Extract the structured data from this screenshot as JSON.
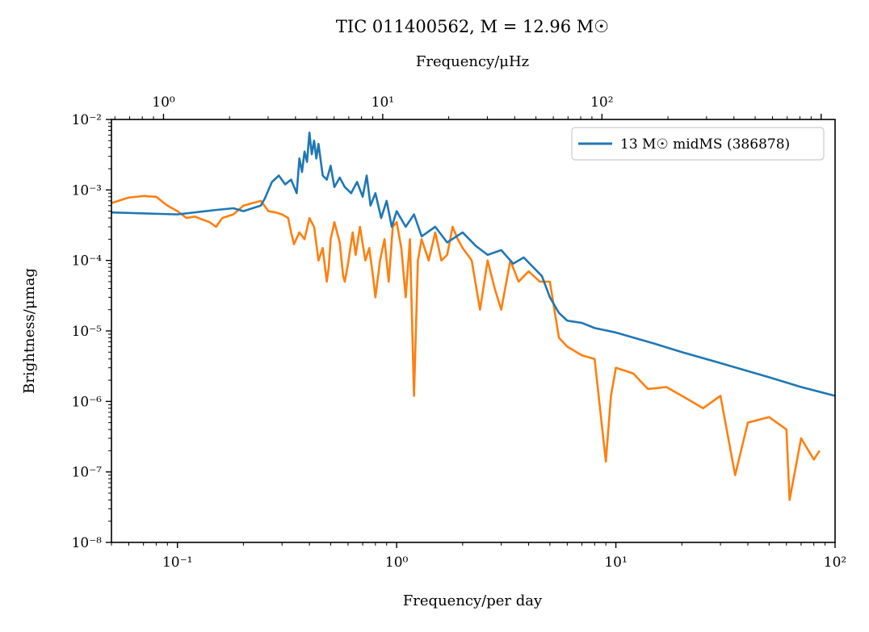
{
  "chart_data": {
    "type": "line",
    "title": "TIC 011400562, M = 12.96 M☉",
    "xlabel": "Frequency/per day",
    "ylabel": "Brightness/μmag",
    "x2label": "Frequency/μHz",
    "xscale": "log",
    "yscale": "log",
    "xlim": [
      0.05,
      100
    ],
    "ylim": [
      1e-08,
      0.01
    ],
    "x2lim": [
      0.5787,
      1157.4
    ],
    "x_ticks": [
      {
        "value": 0.1,
        "label": "10⁻¹"
      },
      {
        "value": 1,
        "label": "10⁰"
      },
      {
        "value": 10,
        "label": "10¹"
      },
      {
        "value": 100,
        "label": "10²"
      }
    ],
    "x2_ticks": [
      {
        "value": 1,
        "label": "10⁰"
      },
      {
        "value": 10,
        "label": "10¹"
      },
      {
        "value": 100,
        "label": "10²"
      }
    ],
    "y_ticks": [
      {
        "value": 0.01,
        "label": "10⁻²"
      },
      {
        "value": 0.001,
        "label": "10⁻³"
      },
      {
        "value": 0.0001,
        "label": "10⁻⁴"
      },
      {
        "value": 1e-05,
        "label": "10⁻⁵"
      },
      {
        "value": 1e-06,
        "label": "10⁻⁶"
      },
      {
        "value": 1e-07,
        "label": "10⁻⁷"
      },
      {
        "value": 1e-08,
        "label": "10⁻⁸"
      }
    ],
    "grid": false,
    "legend": "top-right",
    "series": [
      {
        "name": "13 M☉ midMS (386878)",
        "color": "#1f77b4",
        "x": [
          0.05,
          0.1,
          0.15,
          0.18,
          0.2,
          0.22,
          0.24,
          0.25,
          0.27,
          0.29,
          0.31,
          0.33,
          0.35,
          0.36,
          0.37,
          0.38,
          0.39,
          0.4,
          0.41,
          0.42,
          0.43,
          0.44,
          0.46,
          0.48,
          0.5,
          0.52,
          0.55,
          0.58,
          0.62,
          0.66,
          0.7,
          0.73,
          0.76,
          0.8,
          0.85,
          0.9,
          0.95,
          1.0,
          1.1,
          1.2,
          1.3,
          1.5,
          1.7,
          2.0,
          2.3,
          2.6,
          3.0,
          3.4,
          3.8,
          4.2,
          4.6,
          5.0,
          5.5,
          6.0,
          7.0,
          8.0,
          10,
          15,
          20,
          30,
          50,
          70,
          100
        ],
        "y": [
          0.00048,
          0.00045,
          0.00052,
          0.00055,
          0.0005,
          0.00055,
          0.0006,
          0.00075,
          0.0013,
          0.0016,
          0.0012,
          0.0014,
          0.0009,
          0.0028,
          0.0018,
          0.0035,
          0.0025,
          0.0065,
          0.0032,
          0.005,
          0.0028,
          0.0045,
          0.0016,
          0.0014,
          0.0022,
          0.0011,
          0.0015,
          0.0011,
          0.0009,
          0.0013,
          0.0008,
          0.0016,
          0.0006,
          0.0009,
          0.0004,
          0.0007,
          0.0003,
          0.0005,
          0.0003,
          0.00045,
          0.00022,
          0.0003,
          0.00018,
          0.00025,
          0.00016,
          0.00012,
          0.00014,
          9e-05,
          0.00011,
          8e-05,
          6e-05,
          3e-05,
          1.8e-05,
          1.4e-05,
          1.3e-05,
          1.1e-05,
          9.5e-06,
          6.6e-06,
          5e-06,
          3.5e-06,
          2.2e-06,
          1.6e-06,
          1.2e-06
        ]
      },
      {
        "color": "#ff7f0e",
        "x": [
          0.05,
          0.06,
          0.07,
          0.08,
          0.09,
          0.1,
          0.11,
          0.12,
          0.13,
          0.14,
          0.15,
          0.16,
          0.18,
          0.2,
          0.22,
          0.24,
          0.26,
          0.28,
          0.3,
          0.32,
          0.33,
          0.34,
          0.36,
          0.38,
          0.4,
          0.42,
          0.44,
          0.46,
          0.48,
          0.49,
          0.5,
          0.52,
          0.55,
          0.57,
          0.58,
          0.6,
          0.63,
          0.65,
          0.68,
          0.72,
          0.75,
          0.78,
          0.8,
          0.84,
          0.88,
          0.92,
          0.96,
          1.0,
          1.05,
          1.1,
          1.15,
          1.2,
          1.25,
          1.3,
          1.4,
          1.5,
          1.6,
          1.7,
          1.8,
          1.9,
          2.0,
          2.2,
          2.4,
          2.6,
          2.8,
          3.0,
          3.3,
          3.6,
          4.0,
          4.5,
          5.0,
          5.5,
          6.0,
          7.0,
          8.0,
          9.0,
          9.5,
          10,
          12,
          14,
          17,
          20,
          25,
          30,
          35,
          40,
          50,
          60,
          62,
          70,
          80,
          85
        ],
        "y": [
          0.00065,
          0.00078,
          0.00082,
          0.0008,
          0.0006,
          0.0005,
          0.0004,
          0.00042,
          0.00038,
          0.00035,
          0.0003,
          0.0004,
          0.00045,
          0.0006,
          0.00065,
          0.0007,
          0.0005,
          0.00048,
          0.00045,
          0.0004,
          0.00025,
          0.00017,
          0.00025,
          0.0002,
          0.0004,
          0.0003,
          0.0001,
          0.00015,
          5e-05,
          8e-05,
          0.0002,
          0.00035,
          0.00018,
          6e-05,
          5e-05,
          9e-05,
          0.00025,
          0.00012,
          0.0003,
          0.0001,
          0.00015,
          6e-05,
          3e-05,
          0.0001,
          0.0002,
          5e-05,
          0.0003,
          0.00035,
          0.00015,
          3e-05,
          0.0002,
          1.2e-06,
          0.0001,
          0.0002,
          0.0001,
          0.00025,
          0.0001,
          0.00012,
          0.0003,
          0.0002,
          0.00015,
          0.0001,
          2e-05,
          0.0001,
          4e-05,
          2e-05,
          0.0001,
          5e-05,
          7e-05,
          5e-05,
          5e-05,
          8e-06,
          6e-06,
          4.5e-06,
          4e-06,
          1.4e-07,
          1.2e-06,
          3e-06,
          2.5e-06,
          1.5e-06,
          1.6e-06,
          1.2e-06,
          8e-07,
          1.2e-06,
          9e-08,
          5e-07,
          6e-07,
          4e-07,
          4e-08,
          3e-07,
          1.5e-07,
          2e-07
        ]
      }
    ]
  }
}
